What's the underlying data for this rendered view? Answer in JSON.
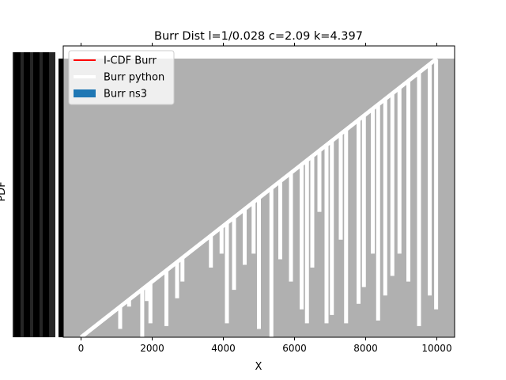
{
  "chart_data": {
    "type": "line",
    "title": "Burr Dist l=1/0.028 c=2.09 k=4.397",
    "xlabel": "X",
    "ylabel": "PDF",
    "xlim": [
      -500,
      10500
    ],
    "x_ticks": [
      0,
      2000,
      4000,
      6000,
      8000,
      10000
    ],
    "x_tick_labels": [
      "0",
      "2000",
      "4000",
      "6000",
      "8000",
      "10000"
    ],
    "y_tick_labels_note": "dense overlapping black tick labels (illegible)",
    "grid": false,
    "legend_position": "top-left",
    "colors": {
      "icdf": "#ff0000",
      "python": "#ffffff",
      "ns3": "#1f77b4",
      "fill": "#b0b0b0",
      "dense_ticks": "#000000"
    },
    "series": [
      {
        "name": "I-CDF Burr",
        "color": "#ff0000",
        "x": [
          0,
          10000
        ],
        "y": [
          0,
          1
        ]
      },
      {
        "name": "Burr python",
        "color": "#ffffff",
        "x": [
          0,
          1000,
          2000,
          3000,
          4000,
          5000,
          6000,
          7000,
          8000,
          9000,
          10000
        ],
        "y": [
          0,
          0.1,
          0.2,
          0.3,
          0.4,
          0.5,
          0.6,
          0.7,
          0.8,
          0.9,
          1
        ]
      },
      {
        "name": "Burr ns3",
        "color": "#1f77b4",
        "type": "bar"
      }
    ],
    "white_spikes": [
      {
        "x": 1100,
        "y": 0.03
      },
      {
        "x": 1350,
        "y": 0.11
      },
      {
        "x": 1720,
        "y": 0.0
      },
      {
        "x": 1850,
        "y": 0.13
      },
      {
        "x": 1950,
        "y": 0.05
      },
      {
        "x": 2400,
        "y": 0.04
      },
      {
        "x": 2700,
        "y": 0.14
      },
      {
        "x": 2850,
        "y": 0.2
      },
      {
        "x": 3650,
        "y": 0.25
      },
      {
        "x": 3950,
        "y": 0.3
      },
      {
        "x": 4100,
        "y": 0.05
      },
      {
        "x": 4300,
        "y": 0.17
      },
      {
        "x": 4600,
        "y": 0.26
      },
      {
        "x": 4850,
        "y": 0.3
      },
      {
        "x": 5000,
        "y": 0.03
      },
      {
        "x": 5350,
        "y": 0.0
      },
      {
        "x": 5600,
        "y": 0.28
      },
      {
        "x": 5900,
        "y": 0.2
      },
      {
        "x": 6200,
        "y": 0.1
      },
      {
        "x": 6350,
        "y": 0.05
      },
      {
        "x": 6500,
        "y": 0.25
      },
      {
        "x": 6700,
        "y": 0.45
      },
      {
        "x": 6900,
        "y": 0.05
      },
      {
        "x": 7050,
        "y": 0.08
      },
      {
        "x": 7300,
        "y": 0.35
      },
      {
        "x": 7450,
        "y": 0.05
      },
      {
        "x": 7800,
        "y": 0.12
      },
      {
        "x": 7950,
        "y": 0.18
      },
      {
        "x": 8200,
        "y": 0.3
      },
      {
        "x": 8350,
        "y": 0.06
      },
      {
        "x": 8550,
        "y": 0.15
      },
      {
        "x": 8750,
        "y": 0.22
      },
      {
        "x": 8950,
        "y": 0.3
      },
      {
        "x": 9200,
        "y": 0.2
      },
      {
        "x": 9500,
        "y": 0.04
      },
      {
        "x": 9800,
        "y": 0.15
      },
      {
        "x": 9980,
        "y": 0.1
      }
    ],
    "legend": [
      {
        "label": "I-CDF Burr",
        "color": "#ff0000",
        "kind": "line"
      },
      {
        "label": "Burr python",
        "color": "#ffffff",
        "kind": "line"
      },
      {
        "label": "Burr ns3",
        "color": "#1f77b4",
        "kind": "patch"
      }
    ]
  }
}
